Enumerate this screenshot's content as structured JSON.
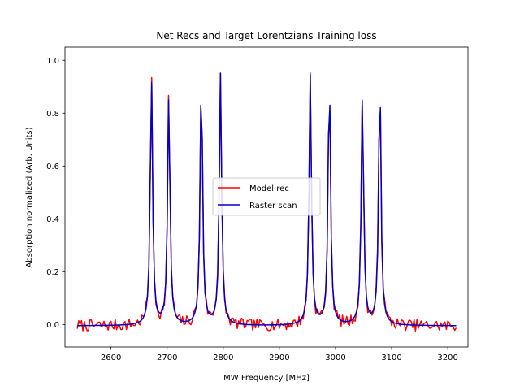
{
  "chart_data": {
    "type": "line",
    "title": "Net Recs and Target Lorentzians Training loss",
    "xlabel": "MW Frequency [MHz]",
    "ylabel": "Absorption normalized (Arb. Units)",
    "xlim": [
      2518,
      3236
    ],
    "ylim": [
      -0.085,
      1.05
    ],
    "xticks": [
      2600,
      2700,
      2800,
      2900,
      3000,
      3100,
      3200
    ],
    "yticks": [
      0.0,
      0.2,
      0.4,
      0.6,
      0.8,
      1.0
    ],
    "ytick_labels": [
      "0.0",
      "0.2",
      "0.4",
      "0.6",
      "0.8",
      "1.0"
    ],
    "grid": false,
    "legend_position": "center-right",
    "lorentzian_model": {
      "range": [
        2540,
        3215
      ],
      "step": 2.5,
      "width": 2.5,
      "baseline": -0.005,
      "peaks": [
        {
          "center": 2672,
          "amplitude": 0.95
        },
        {
          "center": 2703,
          "amplitude": 0.88
        },
        {
          "center": 2761,
          "amplitude": 0.96
        },
        {
          "center": 2795,
          "amplitude": 0.95
        },
        {
          "center": 2955,
          "amplitude": 0.95
        },
        {
          "center": 2989,
          "amplitude": 0.96
        },
        {
          "center": 3048,
          "amplitude": 0.88
        },
        {
          "center": 3079,
          "amplitude": 0.95
        }
      ]
    },
    "series": [
      {
        "name": "Model rec",
        "color": "#ff0000",
        "noise_amplitude": 0.022,
        "noise_seed": 7
      },
      {
        "name": "Raster scan",
        "color": "#0000cc",
        "noise_amplitude": 0.0,
        "noise_seed": 0
      }
    ]
  }
}
